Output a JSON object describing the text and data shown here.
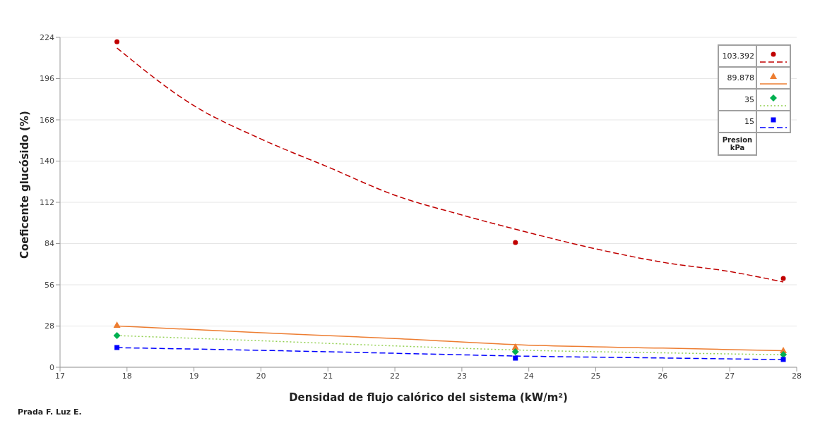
{
  "chart_data": {
    "type": "scatter",
    "xlabel": "Densidad de flujo calórico del sistema  (kW/m²)",
    "ylabel": "Coeficente glucósido (%)",
    "legend_title": "Presion kPa",
    "legend": "top right",
    "grid": "y",
    "xlim": [
      17,
      28
    ],
    "xticks": [
      17,
      18,
      19,
      20,
      21,
      22,
      23,
      24,
      25,
      26,
      27,
      28
    ],
    "ylim": [
      0,
      224
    ],
    "yticks": [
      0,
      28,
      56,
      84,
      112,
      140,
      168,
      196,
      224
    ],
    "annotations": [
      "Prada F. Luz E."
    ],
    "series": [
      {
        "type": "scatter",
        "name": "103.392",
        "color": "#c00000",
        "marker": "circle",
        "x": [
          17.85,
          23.8,
          27.8
        ],
        "values": [
          221,
          84.7,
          60.3
        ]
      },
      {
        "type": "scatter",
        "name": "89.878",
        "color": "#ed7d31",
        "marker": "triangle",
        "x": [
          17.85,
          23.8,
          27.8
        ],
        "values": [
          28.7,
          13.9,
          11.5
        ]
      },
      {
        "type": "scatter",
        "name": "35",
        "color": "#00b050",
        "marker": "diamond",
        "x": [
          17.85,
          23.8,
          27.8
        ],
        "values": [
          21.5,
          10.5,
          8.6
        ]
      },
      {
        "type": "scatter",
        "name": "15",
        "color": "#0000ff",
        "marker": "square",
        "x": [
          17.85,
          23.8,
          27.8
        ],
        "values": [
          13.4,
          6.2,
          5.3
        ]
      },
      {
        "type": "line",
        "color": "#c00000",
        "line_style": "dashed",
        "x": [
          17.85,
          19,
          20,
          21,
          22,
          23,
          24,
          25,
          26,
          27,
          27.8
        ],
        "values": [
          216.8,
          177.6,
          155,
          136,
          116.8,
          103.4,
          91.4,
          80.4,
          71.3,
          65,
          57.9
        ]
      },
      {
        "type": "line",
        "color": "#ed7d31",
        "line_style": "solid",
        "x": [
          17.85,
          20,
          22,
          24,
          26,
          27.8
        ],
        "values": [
          28,
          23.5,
          19.5,
          15,
          13,
          11.2
        ]
      },
      {
        "type": "line",
        "color": "#92d050",
        "line_style": "dotted",
        "x": [
          17.85,
          20,
          22,
          24,
          26,
          27.8
        ],
        "values": [
          21.5,
          18,
          14.5,
          11.5,
          9.8,
          8.5
        ]
      },
      {
        "type": "line",
        "color": "#0000ff",
        "line_style": "dashed",
        "x": [
          17.85,
          20,
          22,
          24,
          26,
          27.8
        ],
        "values": [
          13.3,
          11.5,
          9.5,
          7.5,
          6.3,
          5.2
        ]
      }
    ]
  }
}
